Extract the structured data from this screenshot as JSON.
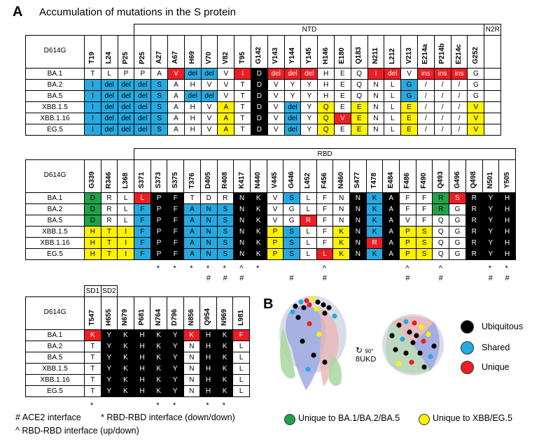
{
  "panel_a": {
    "letter": "A",
    "title": "Accumulation of mutations in the S protein"
  },
  "panel_b": {
    "letter": "B",
    "pdb": "8UKD",
    "rotation": "90°"
  },
  "variants": [
    "BA.1",
    "BA.2",
    "BA.5",
    "XBB.1.5",
    "XBB.1.16",
    "EG.5"
  ],
  "reference": "D614G",
  "table1": {
    "groups": [
      {
        "label": "NTD",
        "span": 30
      },
      {
        "label": "N2R",
        "span": 1
      }
    ],
    "columns": [
      "T19",
      "L24",
      "P25",
      "P25",
      "A27",
      "A67",
      "H69",
      "V70",
      "V82",
      "T95",
      "G142",
      "V143",
      "Y144",
      "Y145",
      "H146",
      "E180",
      "Q183",
      "N211",
      "L212",
      "V213",
      "E214a",
      "P214b",
      "E214c",
      "G252",
      ""
    ],
    "rows": [
      {
        "cells": [
          "T",
          "L",
          "P",
          "P",
          "A",
          "V",
          "del",
          "del",
          "V",
          "I",
          "D",
          "del",
          "del",
          "del",
          "H",
          "E",
          "Q",
          "I",
          "del",
          "V",
          "ins",
          "ins",
          "ins",
          "G",
          ""
        ],
        "colors": [
          "",
          "",
          "",
          "",
          "",
          "rd",
          "bl",
          "bl",
          "",
          "rd",
          "bk",
          "rd",
          "rd",
          "rd",
          "",
          "",
          "",
          "rd",
          "rd",
          "",
          "rd",
          "rd",
          "rd",
          "",
          ""
        ]
      },
      {
        "cells": [
          "I",
          "del",
          "del",
          "del",
          "S",
          "A",
          "H",
          "V",
          "V",
          "T",
          "D",
          "V",
          "Y",
          "Y",
          "H",
          "E",
          "Q",
          "N",
          "L",
          "G",
          "/",
          "/",
          "/",
          "G",
          ""
        ],
        "colors": [
          "bl",
          "bl",
          "bl",
          "bl",
          "bl",
          "",
          "",
          "",
          "",
          "",
          "bk",
          "",
          "",
          "",
          "",
          "",
          "",
          "",
          "",
          "bl",
          "",
          "",
          "",
          "",
          ""
        ]
      },
      {
        "cells": [
          "I",
          "del",
          "del",
          "del",
          "S",
          "A",
          "del",
          "del",
          "V",
          "T",
          "D",
          "V",
          "Y",
          "Y",
          "H",
          "E",
          "Q",
          "N",
          "L",
          "G",
          "/",
          "/",
          "/",
          "G",
          ""
        ],
        "colors": [
          "bl",
          "bl",
          "bl",
          "bl",
          "bl",
          "",
          "bl",
          "bl",
          "",
          "",
          "bk",
          "",
          "",
          "",
          "",
          "",
          "",
          "",
          "",
          "bl",
          "",
          "",
          "",
          "",
          ""
        ]
      },
      {
        "cells": [
          "I",
          "del",
          "del",
          "del",
          "S",
          "A",
          "H",
          "V",
          "A",
          "T",
          "D",
          "V",
          "del",
          "Y",
          "Q",
          "E",
          "E",
          "N",
          "L",
          "E",
          "/",
          "/",
          "/",
          "V",
          ""
        ],
        "colors": [
          "bl",
          "bl",
          "bl",
          "bl",
          "bl",
          "",
          "",
          "",
          "ye",
          "",
          "bk",
          "",
          "bl",
          "",
          "ye",
          "",
          "ye",
          "",
          "",
          "ye",
          "",
          "",
          "",
          "ye",
          ""
        ]
      },
      {
        "cells": [
          "I",
          "del",
          "del",
          "del",
          "S",
          "A",
          "H",
          "V",
          "A",
          "T",
          "D",
          "V",
          "del",
          "Y",
          "Q",
          "V",
          "E",
          "N",
          "L",
          "E",
          "/",
          "/",
          "/",
          "V",
          ""
        ],
        "colors": [
          "bl",
          "bl",
          "bl",
          "bl",
          "bl",
          "",
          "",
          "",
          "ye",
          "",
          "bk",
          "",
          "bl",
          "",
          "ye",
          "rd",
          "ye",
          "",
          "",
          "ye",
          "",
          "",
          "",
          "ye",
          ""
        ]
      },
      {
        "cells": [
          "I",
          "del",
          "del",
          "del",
          "S",
          "A",
          "H",
          "V",
          "A",
          "T",
          "D",
          "V",
          "del",
          "Y",
          "Q",
          "E",
          "E",
          "N",
          "L",
          "E",
          "/",
          "/",
          "/",
          "V",
          ""
        ],
        "colors": [
          "bl",
          "bl",
          "bl",
          "bl",
          "bl",
          "",
          "",
          "",
          "ye",
          "",
          "bk",
          "",
          "bl",
          "",
          "ye",
          "",
          "ye",
          "",
          "",
          "ye",
          "",
          "",
          "",
          "ye",
          ""
        ]
      }
    ]
  },
  "table2": {
    "group": "RBD",
    "columns": [
      "G339",
      "R346",
      "L368",
      "S371",
      "S373",
      "S375",
      "T376",
      "D405",
      "R408",
      "K417",
      "N440",
      "V445",
      "G446",
      "L452",
      "F456",
      "N460",
      "S477",
      "T478",
      "E484",
      "F486",
      "F490",
      "Q493",
      "G496",
      "Q498",
      "N501",
      "Y505"
    ],
    "rows": [
      {
        "cells": [
          "D",
          "R",
          "L",
          "L",
          "P",
          "F",
          "T",
          "D",
          "R",
          "N",
          "K",
          "V",
          "S",
          "L",
          "F",
          "N",
          "N",
          "K",
          "A",
          "F",
          "F",
          "R",
          "S",
          "R",
          "Y",
          "H"
        ],
        "colors": [
          "gr",
          "",
          "",
          "rd",
          "bk",
          "bk",
          "",
          "",
          "",
          "bk",
          "bk",
          "",
          "bl",
          "",
          "",
          "",
          "bk",
          "bl",
          "bk",
          "",
          "",
          "gr",
          "rd",
          "bk",
          "bk",
          "bk"
        ]
      },
      {
        "cells": [
          "D",
          "R",
          "L",
          "F",
          "P",
          "F",
          "A",
          "N",
          "S",
          "N",
          "K",
          "V",
          "G",
          "L",
          "F",
          "N",
          "N",
          "K",
          "A",
          "F",
          "F",
          "R",
          "G",
          "R",
          "Y",
          "H"
        ],
        "colors": [
          "gr",
          "",
          "",
          "bl",
          "bk",
          "bk",
          "bl",
          "bl",
          "bl",
          "bk",
          "bk",
          "",
          "",
          "",
          "",
          "",
          "bk",
          "bl",
          "bk",
          "",
          "",
          "gr",
          "",
          "bk",
          "bk",
          "bk"
        ]
      },
      {
        "cells": [
          "D",
          "R",
          "L",
          "F",
          "P",
          "F",
          "A",
          "N",
          "S",
          "N",
          "K",
          "V",
          "G",
          "R",
          "F",
          "N",
          "N",
          "K",
          "A",
          "V",
          "F",
          "Q",
          "G",
          "R",
          "Y",
          "H"
        ],
        "colors": [
          "gr",
          "",
          "",
          "bl",
          "bk",
          "bk",
          "bl",
          "bl",
          "bl",
          "bk",
          "bk",
          "",
          "",
          "rd",
          "",
          "",
          "bk",
          "bl",
          "bk",
          "",
          "",
          "",
          "",
          "bk",
          "bk",
          "bk"
        ]
      },
      {
        "cells": [
          "H",
          "T",
          "I",
          "F",
          "P",
          "F",
          "A",
          "N",
          "S",
          "N",
          "K",
          "P",
          "S",
          "L",
          "F",
          "K",
          "N",
          "K",
          "A",
          "P",
          "S",
          "Q",
          "G",
          "R",
          "Y",
          "H"
        ],
        "colors": [
          "ye",
          "ye",
          "ye",
          "bl",
          "bk",
          "bk",
          "bl",
          "bl",
          "bl",
          "bk",
          "bk",
          "ye",
          "bl",
          "",
          "",
          "ye",
          "bk",
          "bl",
          "bk",
          "ye",
          "ye",
          "",
          "",
          "bk",
          "bk",
          "bk"
        ]
      },
      {
        "cells": [
          "H",
          "T",
          "I",
          "F",
          "P",
          "F",
          "A",
          "N",
          "S",
          "N",
          "K",
          "P",
          "S",
          "L",
          "F",
          "K",
          "N",
          "R",
          "A",
          "P",
          "S",
          "Q",
          "G",
          "R",
          "Y",
          "H"
        ],
        "colors": [
          "ye",
          "ye",
          "ye",
          "bl",
          "bk",
          "bk",
          "bl",
          "bl",
          "bl",
          "bk",
          "bk",
          "ye",
          "bl",
          "",
          "",
          "ye",
          "bk",
          "rd",
          "bk",
          "ye",
          "ye",
          "",
          "",
          "bk",
          "bk",
          "bk"
        ]
      },
      {
        "cells": [
          "H",
          "T",
          "I",
          "F",
          "P",
          "F",
          "A",
          "N",
          "S",
          "N",
          "K",
          "P",
          "S",
          "L",
          "L",
          "K",
          "N",
          "K",
          "A",
          "P",
          "S",
          "Q",
          "G",
          "R",
          "Y",
          "H"
        ],
        "colors": [
          "ye",
          "ye",
          "ye",
          "bl",
          "bk",
          "bk",
          "bl",
          "bl",
          "bl",
          "bk",
          "bk",
          "ye",
          "bl",
          "",
          "rd",
          "ye",
          "bk",
          "bl",
          "bk",
          "ye",
          "ye",
          "",
          "",
          "bk",
          "bk",
          "bk"
        ]
      }
    ],
    "marks_row1": [
      "",
      "",
      "",
      "",
      "*",
      "*",
      "*",
      "*",
      "*",
      "^",
      "*",
      "",
      "",
      "",
      "^",
      "",
      "",
      "",
      "",
      "^",
      "",
      "^",
      "",
      "",
      "*",
      "*"
    ],
    "marks_row2": [
      "",
      "",
      "",
      "",
      "",
      "",
      "",
      "#",
      "#",
      "#",
      "",
      "",
      "#",
      "",
      "#",
      "",
      "",
      "",
      "",
      "#",
      "",
      "#",
      "",
      "",
      "#",
      "#"
    ]
  },
  "table3": {
    "groups": [
      "SD1",
      "SD2"
    ],
    "columns": [
      "T547",
      "H655",
      "N679",
      "P681",
      "N764",
      "D796",
      "N856",
      "Q954",
      "N969",
      "L981"
    ],
    "rows": [
      {
        "cells": [
          "K",
          "Y",
          "K",
          "H",
          "K",
          "Y",
          "K",
          "H",
          "K",
          "F"
        ],
        "colors": [
          "rd",
          "bk",
          "bk",
          "bk",
          "bk",
          "bk",
          "rd",
          "bk",
          "bk",
          "rd"
        ]
      },
      {
        "cells": [
          "T",
          "Y",
          "K",
          "H",
          "K",
          "Y",
          "N",
          "H",
          "K",
          "L"
        ],
        "colors": [
          "",
          "bk",
          "bk",
          "bk",
          "bk",
          "bk",
          "",
          "bk",
          "bk",
          ""
        ]
      },
      {
        "cells": [
          "T",
          "Y",
          "K",
          "H",
          "K",
          "Y",
          "N",
          "H",
          "K",
          "L"
        ],
        "colors": [
          "",
          "bk",
          "bk",
          "bk",
          "bk",
          "bk",
          "",
          "bk",
          "bk",
          ""
        ]
      },
      {
        "cells": [
          "T",
          "Y",
          "K",
          "H",
          "K",
          "Y",
          "N",
          "H",
          "K",
          "L"
        ],
        "colors": [
          "",
          "bk",
          "bk",
          "bk",
          "bk",
          "bk",
          "",
          "bk",
          "bk",
          ""
        ]
      },
      {
        "cells": [
          "T",
          "Y",
          "K",
          "H",
          "K",
          "Y",
          "N",
          "H",
          "K",
          "L"
        ],
        "colors": [
          "",
          "bk",
          "bk",
          "bk",
          "bk",
          "bk",
          "",
          "bk",
          "bk",
          ""
        ]
      },
      {
        "cells": [
          "T",
          "Y",
          "K",
          "H",
          "K",
          "Y",
          "N",
          "H",
          "K",
          "L"
        ],
        "colors": [
          "",
          "bk",
          "bk",
          "bk",
          "bk",
          "bk",
          "",
          "bk",
          "bk",
          ""
        ]
      }
    ],
    "marks": [
      "*",
      "",
      "",
      "",
      "*",
      "*",
      "",
      "*",
      "*",
      ""
    ]
  },
  "legend": {
    "ace2": "# ACE2 interface",
    "rbd_down": "* RBD-RBD interface (down/down)",
    "rbd_updown": "^ RBD-RBD interface (up/down)",
    "ubiquitous": "Ubiquitous",
    "shared": "Shared",
    "unique": "Unique",
    "unique_ba": "Unique to BA.1/BA.2/BA.5",
    "unique_xbb": "Unique to XBB/EG.5",
    "colors": {
      "ubiquitous": "#000000",
      "shared": "#26a9e0",
      "unique": "#ee1c24",
      "green": "#1fa24a",
      "yellow": "#fff200"
    }
  }
}
